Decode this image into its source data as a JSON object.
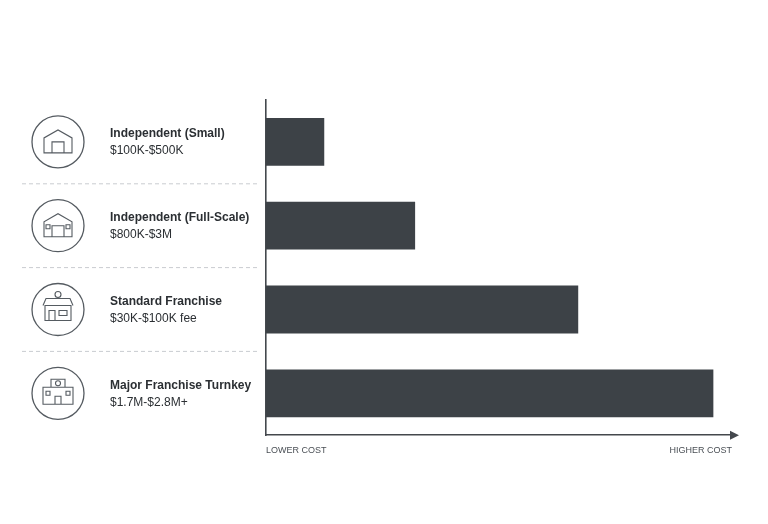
{
  "chart_data": {
    "type": "bar",
    "orientation": "horizontal",
    "categories": [
      [
        "Independent (Small)",
        "$100K-$500K"
      ],
      [
        "Independent (Full-Scale)",
        "$800K-$3M"
      ],
      [
        "Standard Franchise",
        "$30K-$100K fee"
      ],
      [
        "Major Franchise Turnkey",
        "$1.7M-$2.8M+"
      ]
    ],
    "values": [
      12.5,
      32,
      67,
      96
    ],
    "color": "#3d4247",
    "xlim": [
      0,
      100
    ],
    "xticks": [
      {
        "value": 0,
        "label": "LOWER COST"
      },
      {
        "value": 100,
        "label": "HIGHER COST"
      }
    ],
    "grid": false
  }
}
